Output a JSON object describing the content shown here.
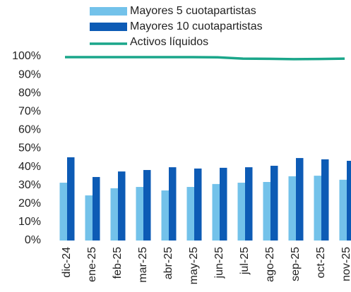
{
  "chart_data": {
    "type": "bar_line",
    "categories": [
      "dic-24",
      "ene-25",
      "feb-25",
      "mar-25",
      "abr-25",
      "may-25",
      "jun-25",
      "jul-25",
      "ago-25",
      "sep-25",
      "oct-25",
      "nov-25"
    ],
    "series": [
      {
        "name": "Mayores 5 cuotapartistas",
        "type": "bar",
        "color": "#73c2ea",
        "values": [
          31.4,
          24.5,
          28.4,
          29.1,
          27.2,
          29.1,
          30.7,
          31.4,
          31.8,
          34.9,
          35.2,
          33.0
        ]
      },
      {
        "name": "Mayores 10 cuotapartistas",
        "type": "bar",
        "color": "#0d5bb5",
        "values": [
          45.2,
          34.5,
          37.5,
          38.3,
          39.8,
          39.1,
          39.5,
          39.8,
          40.6,
          44.8,
          44.1,
          43.3
        ]
      },
      {
        "name": "Activos líquidos",
        "type": "line",
        "color": "#1aa68a",
        "values": [
          99.6,
          99.6,
          99.6,
          99.6,
          99.6,
          99.6,
          99.5,
          98.8,
          98.7,
          98.5,
          98.6,
          98.8
        ]
      }
    ],
    "ylim": [
      0,
      100
    ],
    "yticks": [
      {
        "value": 0,
        "label": "0%"
      },
      {
        "value": 10,
        "label": "10%"
      },
      {
        "value": 20,
        "label": "20%"
      },
      {
        "value": 30,
        "label": "30%"
      },
      {
        "value": 40,
        "label": "40%"
      },
      {
        "value": 50,
        "label": "50%"
      },
      {
        "value": 60,
        "label": "60%"
      },
      {
        "value": 70,
        "label": "70%"
      },
      {
        "value": 80,
        "label": "80%"
      },
      {
        "value": 90,
        "label": "90%"
      },
      {
        "value": 100,
        "label": "100%"
      }
    ],
    "grid": false
  }
}
